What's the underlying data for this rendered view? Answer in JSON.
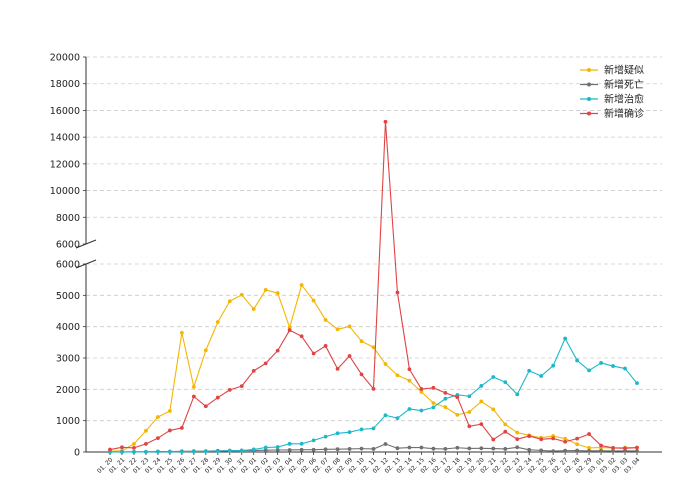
{
  "chart_data": {
    "type": "line",
    "title": "",
    "xlabel": "",
    "ylabel": "",
    "broken_axis": true,
    "upper_ylim": [
      6000,
      20000
    ],
    "lower_ylim": [
      0,
      6000
    ],
    "upper_yticks": [
      "6000",
      "8000",
      "10000",
      "12000",
      "14000",
      "16000",
      "18000",
      "20000"
    ],
    "lower_yticks": [
      "0",
      "1000",
      "2000",
      "3000",
      "4000",
      "5000",
      "6000"
    ],
    "grid": "horizontal-dashed",
    "legend_position": "top-right",
    "categories": [
      "01.20",
      "01.21",
      "01.22",
      "01.23",
      "01.24",
      "01.25",
      "01.26",
      "01.27",
      "01.28",
      "01.29",
      "01.30",
      "01.31",
      "02.01",
      "02.02",
      "02.03",
      "02.04",
      "02.05",
      "02.06",
      "02.07",
      "02.08",
      "02.09",
      "02.10",
      "02.11",
      "02.12",
      "02.13",
      "02.14",
      "02.15",
      "02.16",
      "02.17",
      "02.18",
      "02.19",
      "02.20",
      "02.21",
      "02.22",
      "02.23",
      "02.24",
      "02.25",
      "02.26",
      "02.27",
      "02.28",
      "02.29",
      "03.01",
      "03.02",
      "03.03",
      "03.04"
    ],
    "series": [
      {
        "name": "新增疑似",
        "color": "#f2b705",
        "values": [
          27,
          40,
          257,
          680,
          1118,
          1309,
          3806,
          2077,
          3248,
          4148,
          4812,
          5019,
          4562,
          5173,
          5072,
          3971,
          5328,
          4833,
          4214,
          3916,
          4008,
          3536,
          3342,
          2807,
          2450,
          2277,
          1918,
          1563,
          1432,
          1185,
          1277,
          1614,
          1361,
          882,
          620,
          530,
          452,
          509,
          427,
          248,
          132,
          141,
          129,
          143,
          143
        ]
      },
      {
        "name": "新增死亡",
        "color": "#707070",
        "values": [
          0,
          3,
          8,
          8,
          16,
          15,
          24,
          26,
          26,
          38,
          43,
          46,
          45,
          57,
          64,
          65,
          73,
          73,
          86,
          89,
          97,
          108,
          97,
          254,
          121,
          143,
          142,
          105,
          98,
          136,
          114,
          118,
          109,
          97,
          150,
          71,
          52,
          29,
          44,
          47,
          35,
          42,
          31,
          38,
          31
        ]
      },
      {
        "name": "新增治愈",
        "color": "#1cb8c9",
        "values": [
          0,
          0,
          0,
          3,
          11,
          2,
          9,
          13,
          25,
          25,
          43,
          46,
          82,
          144,
          159,
          261,
          262,
          371,
          491,
          597,
          632,
          722,
          752,
          1171,
          1081,
          1373,
          1323,
          1425,
          1701,
          1824,
          1779,
          2109,
          2393,
          2230,
          1840,
          2594,
          2425,
          2754,
          3622,
          2922,
          2604,
          2842,
          2742,
          2663,
          2197
        ]
      },
      {
        "name": "新增确诊",
        "color": "#e04444",
        "values": [
          77,
          149,
          131,
          259,
          444,
          688,
          769,
          1771,
          1459,
          1737,
          1982,
          2102,
          2590,
          2829,
          3235,
          3887,
          3694,
          3143,
          3385,
          2652,
          3062,
          2478,
          2015,
          15152,
          5090,
          2641,
          2009,
          2048,
          1886,
          1749,
          820,
          889,
          397,
          648,
          409,
          508,
          406,
          433,
          327,
          427,
          573,
          206,
          129,
          119,
          139
        ]
      }
    ]
  }
}
